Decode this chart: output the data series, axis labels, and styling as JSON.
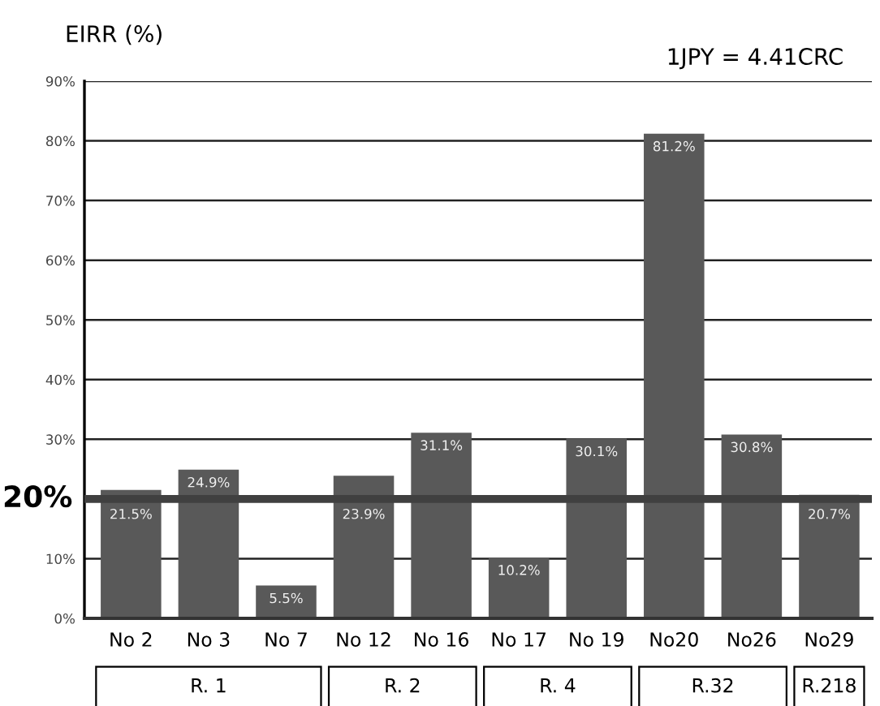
{
  "chart_data": {
    "type": "bar",
    "ylabel": "EIRR (%)",
    "categories": [
      "No 2",
      "No 3",
      "No 7",
      "No 12",
      "No 16",
      "No 17",
      "No 19",
      "No20",
      "No26",
      "No29"
    ],
    "values": [
      21.5,
      24.9,
      5.5,
      23.9,
      31.1,
      10.2,
      30.1,
      81.2,
      30.8,
      20.7
    ],
    "value_labels": [
      "21.5%",
      "24.9%",
      "5.5%",
      "23.9%",
      "31.1%",
      "10.2%",
      "30.1%",
      "81.2%",
      "30.8%",
      "20.7%"
    ],
    "color": "#595959",
    "ylim": [
      0,
      90
    ],
    "yticks": [
      {
        "value": 0,
        "label": "0%"
      },
      {
        "value": 10,
        "label": "10%"
      },
      {
        "value": 30,
        "label": "30%"
      },
      {
        "value": 40,
        "label": "40%"
      },
      {
        "value": 50,
        "label": "50%"
      },
      {
        "value": 60,
        "label": "60%"
      },
      {
        "value": 70,
        "label": "70%"
      },
      {
        "value": 80,
        "label": "80%"
      },
      {
        "value": 90,
        "label": "90%"
      }
    ],
    "grid": "y",
    "ref_lines": [
      {
        "axis": "y",
        "value": 20,
        "label": "20%",
        "color": "#404040"
      }
    ],
    "annotations": [
      "1JPY = 4.41CRC",
      "R. 1",
      "R. 2",
      "R. 4",
      "R.32",
      "R.218"
    ]
  }
}
